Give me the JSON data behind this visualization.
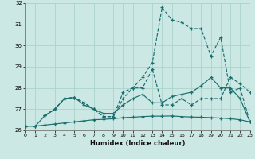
{
  "xlabel": "Humidex (Indice chaleur)",
  "bg_color": "#cce8e4",
  "grid_color": "#aad4cc",
  "line_color": "#1a6e6e",
  "xlim": [
    0,
    23
  ],
  "ylim": [
    26,
    32
  ],
  "xticks": [
    0,
    1,
    2,
    3,
    4,
    5,
    6,
    7,
    8,
    9,
    10,
    11,
    12,
    13,
    14,
    15,
    16,
    17,
    18,
    19,
    20,
    21,
    22,
    23
  ],
  "yticks": [
    26,
    27,
    28,
    29,
    30,
    31,
    32
  ],
  "line1_x": [
    0,
    1,
    2,
    3,
    4,
    5,
    6,
    7,
    8,
    9,
    10,
    11,
    12,
    13,
    14,
    15,
    16,
    17,
    18,
    19,
    20,
    21,
    22,
    23
  ],
  "line1_y": [
    26.2,
    26.2,
    26.25,
    26.3,
    26.35,
    26.4,
    26.45,
    26.5,
    26.52,
    26.55,
    26.6,
    26.62,
    26.65,
    26.67,
    26.67,
    26.68,
    26.65,
    26.63,
    26.62,
    26.6,
    26.58,
    26.55,
    26.5,
    26.4
  ],
  "line2_x": [
    0,
    1,
    2,
    3,
    4,
    5,
    6,
    7,
    8,
    9,
    10,
    11,
    12,
    13,
    14,
    15,
    16,
    17,
    18,
    19,
    20,
    21,
    22,
    23
  ],
  "line2_y": [
    26.2,
    26.2,
    26.7,
    27.0,
    27.5,
    27.55,
    27.2,
    27.0,
    26.8,
    26.8,
    27.2,
    27.5,
    27.7,
    27.3,
    27.3,
    27.6,
    27.7,
    27.8,
    28.1,
    28.5,
    28.0,
    28.0,
    27.5,
    26.4
  ],
  "line3_x": [
    2,
    3,
    4,
    5,
    6,
    7,
    8,
    9,
    10,
    11,
    12,
    13,
    14,
    15,
    16,
    17,
    18,
    19,
    20,
    21,
    22,
    23
  ],
  "line3_y": [
    26.7,
    27.0,
    27.5,
    27.55,
    27.3,
    27.0,
    26.65,
    26.65,
    27.8,
    28.0,
    28.0,
    28.9,
    27.2,
    27.2,
    27.5,
    27.2,
    27.5,
    27.5,
    27.5,
    28.5,
    28.2,
    27.8
  ],
  "line4_x": [
    2,
    3,
    4,
    5,
    6,
    7,
    8,
    9,
    10,
    11,
    12,
    13,
    14,
    15,
    16,
    17,
    18,
    19,
    20,
    21,
    22,
    23
  ],
  "line4_y": [
    26.7,
    27.0,
    27.5,
    27.55,
    27.3,
    27.0,
    26.65,
    26.65,
    27.5,
    28.0,
    28.5,
    29.2,
    31.8,
    31.2,
    31.1,
    30.8,
    30.8,
    29.5,
    30.4,
    27.8,
    28.0,
    26.4
  ],
  "line1_style": "-",
  "line2_style": "-",
  "line3_style": "--",
  "line4_style": "--"
}
